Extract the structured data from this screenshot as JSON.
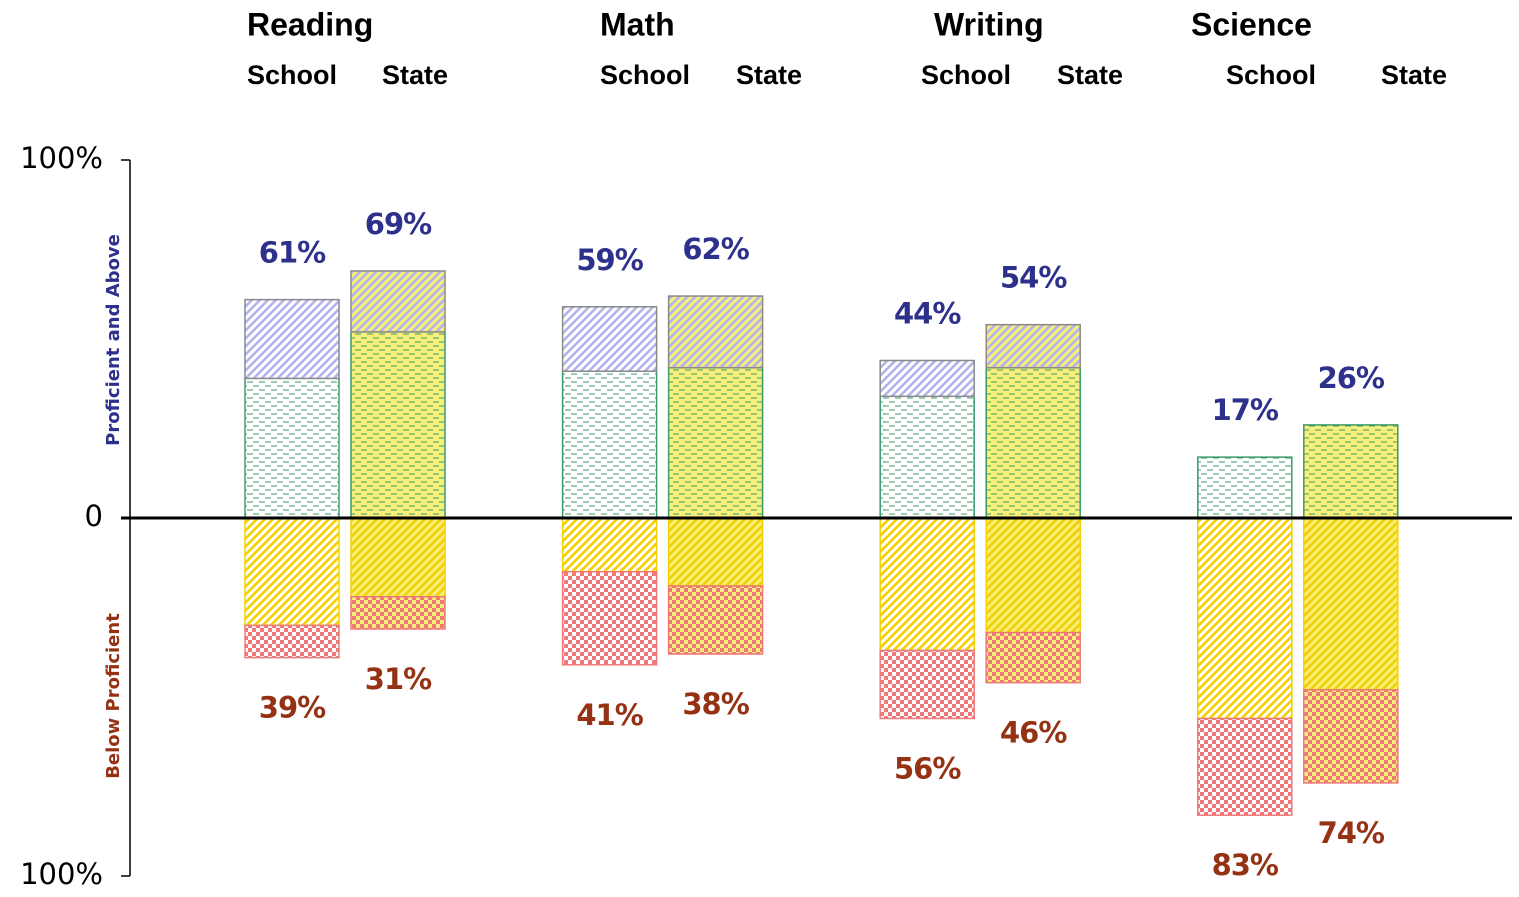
{
  "chart_data": {
    "type": "diverging_stacked_bar",
    "groups": [
      "Reading",
      "Math",
      "Writing",
      "Science"
    ],
    "categories": [
      "School",
      "State",
      "School",
      "State",
      "School",
      "State",
      "School",
      "State"
    ],
    "y_label_above": "Proficient and Above",
    "y_label_below": "Below Proficient",
    "ylim": [
      -100,
      100
    ],
    "yticks": [
      {
        "value": 100,
        "label": "100%"
      },
      0,
      {
        "value": -100,
        "label": "100%"
      }
    ],
    "backgrounds": [
      "#ffffff",
      "#f8ef7a"
    ],
    "series": [
      {
        "pattern": "dash",
        "color": "#3a9a6a",
        "values": [
          39,
          52,
          41,
          42,
          34,
          42,
          17,
          26
        ]
      },
      {
        "pattern": "hatch",
        "color": "#b4b4ec",
        "values": [
          22,
          17,
          18,
          20,
          10,
          12,
          0,
          0
        ]
      },
      {
        "pattern": "hatch",
        "color": "#f2d000",
        "values": [
          -30,
          -22,
          -15,
          -19,
          -37,
          -32,
          -56,
          -48
        ]
      },
      {
        "pattern": "check",
        "color": "#f07878",
        "values": [
          -9,
          -9,
          -26,
          -19,
          -19,
          -14,
          -27,
          -26
        ]
      }
    ],
    "totals_above": {
      "color": "#2e318c",
      "values": [
        61,
        69,
        59,
        62,
        44,
        54,
        17,
        26
      ],
      "value_labels": [
        "61%",
        "69%",
        "59%",
        "62%",
        "44%",
        "54%",
        "17%",
        "26%"
      ]
    },
    "totals_below": {
      "color": "#963214",
      "values": [
        -39,
        -31,
        -41,
        -38,
        -56,
        -46,
        -83,
        -74
      ],
      "value_labels": [
        "39%",
        "31%",
        "41%",
        "38%",
        "56%",
        "46%",
        "83%",
        "74%"
      ]
    }
  }
}
